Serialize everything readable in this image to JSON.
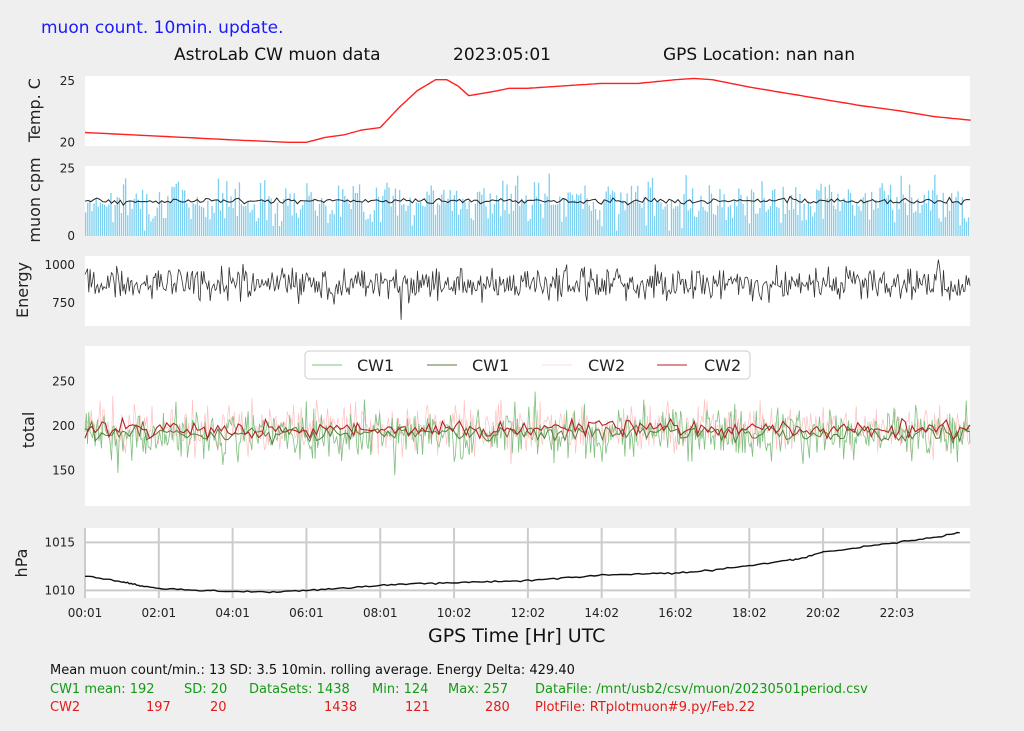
{
  "top_note": "muon count.  10min. update.",
  "header": {
    "title": "AstroLab CW muon data",
    "date": "2023:05:01",
    "gps": "GPS Location: nan   nan"
  },
  "colors": {
    "temp": "#ff2020",
    "cpm_bar": "#7ccff0",
    "cpm_avg": "#222222",
    "energy": "#333333",
    "cw1": "#7fbf7f",
    "cw1_avg": "#5a7a3a",
    "cw2": "#ffc0c0",
    "cw2_avg": "#b22222",
    "pressure": "#111111"
  },
  "chart_data": [
    {
      "type": "line",
      "ylabel": "Temp. C",
      "yticks": [
        20,
        25
      ],
      "ylim": [
        19.7,
        25.4
      ],
      "x": [
        0.0,
        2.0,
        4.0,
        5.5,
        6.0,
        6.5,
        7.0,
        7.5,
        8.0,
        8.5,
        9.0,
        9.5,
        9.8,
        10.1,
        10.4,
        11.0,
        11.5,
        12.0,
        13.0,
        14.0,
        15.0,
        16.0,
        16.5,
        17.0,
        18.0,
        19.0,
        20.0,
        21.0,
        22.0,
        23.0,
        24.0
      ],
      "y": [
        20.8,
        20.5,
        20.2,
        20.0,
        20.0,
        20.4,
        20.6,
        21.0,
        21.2,
        22.8,
        24.2,
        25.1,
        25.1,
        24.6,
        23.8,
        24.1,
        24.4,
        24.4,
        24.6,
        24.8,
        24.8,
        25.1,
        25.2,
        25.1,
        24.5,
        24.0,
        23.5,
        23.0,
        22.6,
        22.1,
        21.8
      ]
    },
    {
      "type": "bar",
      "ylabel": "muon cpm",
      "yticks": [
        0,
        25
      ],
      "ylim": [
        0,
        26
      ],
      "mean": 13,
      "sd": 3.5,
      "series": [
        {
          "name": "rolling average",
          "values_desc": "10min rolling average near 13"
        }
      ]
    },
    {
      "type": "line",
      "ylabel": "Energy",
      "yticks": [
        750,
        1000
      ],
      "ylim": [
        600,
        1060
      ],
      "mean": 880,
      "range": [
        640,
        1040
      ]
    },
    {
      "type": "line",
      "ylabel": "total",
      "yticks": [
        150,
        200,
        250
      ],
      "ylim": [
        110,
        290
      ],
      "legend_position": "top-center",
      "series": [
        {
          "name": "CW1",
          "mean": 192,
          "sd": 20,
          "min": 124,
          "max": 257
        },
        {
          "name": "CW1",
          "style": "rolling average"
        },
        {
          "name": "CW2",
          "mean": 197,
          "sd": 20,
          "min": 121,
          "max": 280
        },
        {
          "name": "CW2",
          "style": "rolling average"
        }
      ]
    },
    {
      "type": "line",
      "ylabel": "hPa",
      "yticks": [
        1010,
        1015
      ],
      "ylim": [
        1009.2,
        1016.5
      ],
      "grid": true,
      "x": [
        0.0,
        1.0,
        1.5,
        2.0,
        3.0,
        4.0,
        5.0,
        6.0,
        7.0,
        8.0,
        9.0,
        10.0,
        11.0,
        12.0,
        13.0,
        14.0,
        15.0,
        16.0,
        17.0,
        18.0,
        19.0,
        19.5,
        20.0,
        21.0,
        22.0,
        23.0,
        23.7
      ],
      "y": [
        1011.5,
        1010.9,
        1010.5,
        1010.2,
        1010.0,
        1009.9,
        1009.8,
        1010.0,
        1010.2,
        1010.5,
        1010.7,
        1010.8,
        1010.9,
        1011.0,
        1011.3,
        1011.6,
        1011.7,
        1011.8,
        1012.1,
        1012.6,
        1013.1,
        1013.4,
        1014.0,
        1014.5,
        1015.0,
        1015.5,
        1016.0
      ],
      "xticks": [
        "00:01",
        "02:01",
        "04:01",
        "06:01",
        "08:01",
        "10:02",
        "12:02",
        "14:02",
        "16:02",
        "18:02",
        "20:02",
        "22:03"
      ],
      "xlabel": "GPS Time  [Hr] UTC"
    }
  ],
  "stats": {
    "line0": "Mean muon count/min.: 13  SD: 3.5   10min. rolling average.    Energy Delta:  429.40",
    "cw1": {
      "label": "CW1 mean: 192",
      "sd": "SD: 20",
      "sets": "DataSets: 1438",
      "min": "Min: 124",
      "max": "Max: 257",
      "file": "DataFile: /mnt/usb2/csv/muon/20230501period.csv"
    },
    "cw2": {
      "label": "CW2",
      "mean": "197",
      "sd": "20",
      "sets": "1438",
      "min": "121",
      "max": "280",
      "file": "PlotFile: RTplotmuon#9.py/Feb.22"
    }
  }
}
